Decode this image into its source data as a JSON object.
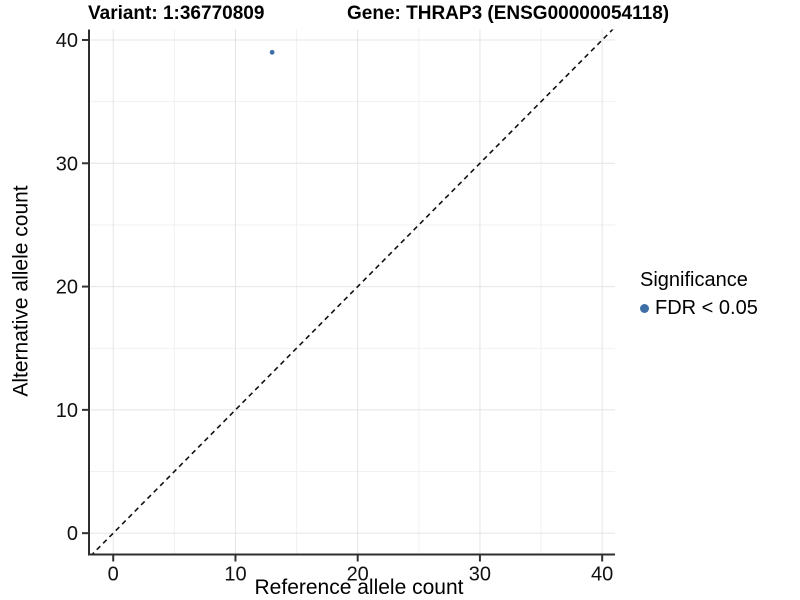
{
  "chart": {
    "title_left": "Variant: 1:36770809",
    "title_right": "Gene: THRAP3 (ENSG00000054118)"
  },
  "chart_data": {
    "type": "scatter",
    "title": "Variant: 1:36770809 — Gene: THRAP3 (ENSG00000054118)",
    "xlabel": "Reference allele count",
    "ylabel": "Alternative allele count",
    "xlim": [
      -1.9,
      41.05
    ],
    "ylim": [
      -1.65,
      40.85
    ],
    "xticks": [
      0,
      10,
      20,
      30,
      40
    ],
    "yticks": [
      0,
      10,
      20,
      30,
      40
    ],
    "minor_xticks": [
      5,
      15,
      25,
      35
    ],
    "minor_yticks": [
      5,
      15,
      25,
      35
    ],
    "grid": "major+minor",
    "series": [
      {
        "name": "FDR < 0.05",
        "color": "#3d6fa6",
        "points": [
          {
            "x": 13,
            "y": 39
          }
        ]
      }
    ],
    "reference_line": {
      "type": "identity",
      "style": "dashed",
      "color": "#111111",
      "note": "y = x diagonal"
    },
    "legend": {
      "position": "right",
      "title": "Significance",
      "entries": [
        {
          "label": "FDR < 0.05",
          "color": "#3d6fa6"
        }
      ]
    }
  }
}
